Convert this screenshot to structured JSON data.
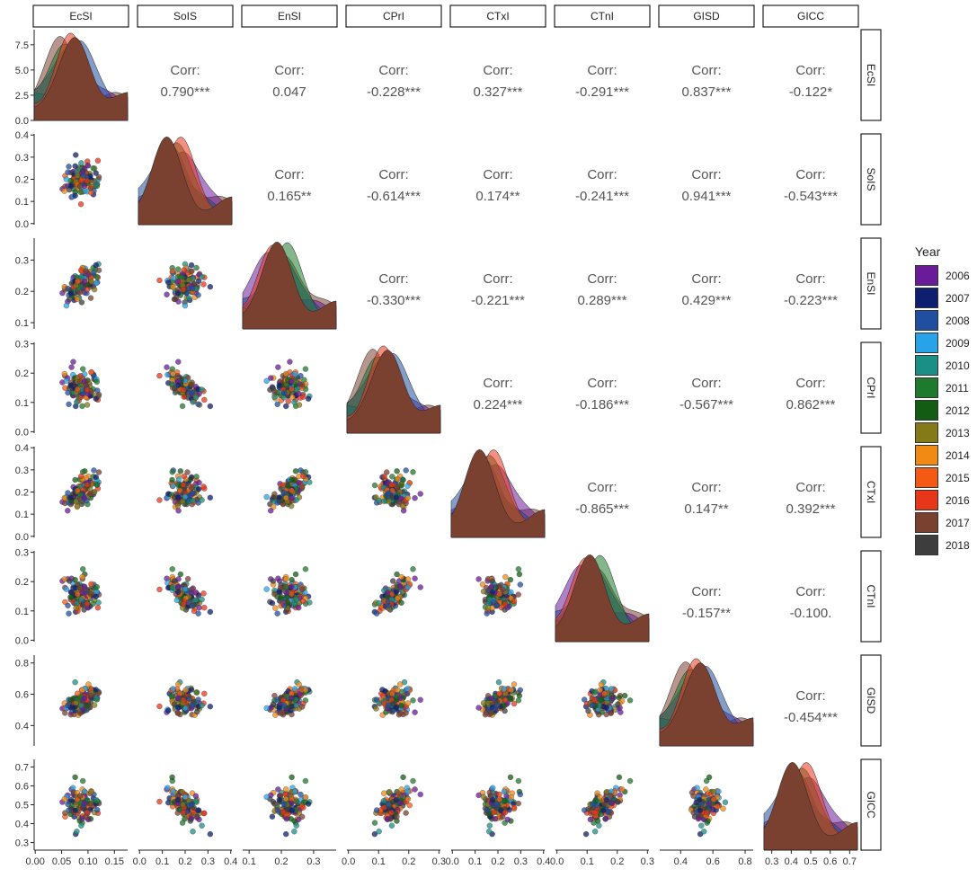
{
  "chart_data": {
    "type": "scatter-matrix",
    "variables": [
      "EcSI",
      "SoIS",
      "EnSI",
      "CPrI",
      "CTxI",
      "CTnI",
      "GISD",
      "GICC"
    ],
    "corr_label": "Corr:",
    "correlations": [
      {
        "row": "EcSI",
        "col": "SoIS",
        "value": "0.790***"
      },
      {
        "row": "EcSI",
        "col": "EnSI",
        "value": "0.047"
      },
      {
        "row": "EcSI",
        "col": "CPrI",
        "value": "-0.228***"
      },
      {
        "row": "EcSI",
        "col": "CTxI",
        "value": "0.327***"
      },
      {
        "row": "EcSI",
        "col": "CTnI",
        "value": "-0.291***"
      },
      {
        "row": "EcSI",
        "col": "GISD",
        "value": "0.837***"
      },
      {
        "row": "EcSI",
        "col": "GICC",
        "value": "-0.122*"
      },
      {
        "row": "SoIS",
        "col": "EnSI",
        "value": "0.165**"
      },
      {
        "row": "SoIS",
        "col": "CPrI",
        "value": "-0.614***"
      },
      {
        "row": "SoIS",
        "col": "CTxI",
        "value": "0.174**"
      },
      {
        "row": "SoIS",
        "col": "CTnI",
        "value": "-0.241***"
      },
      {
        "row": "SoIS",
        "col": "GISD",
        "value": "0.941***"
      },
      {
        "row": "SoIS",
        "col": "GICC",
        "value": "-0.543***"
      },
      {
        "row": "EnSI",
        "col": "CPrI",
        "value": "-0.330***"
      },
      {
        "row": "EnSI",
        "col": "CTxI",
        "value": "-0.221***"
      },
      {
        "row": "EnSI",
        "col": "CTnI",
        "value": "0.289***"
      },
      {
        "row": "EnSI",
        "col": "GISD",
        "value": "0.429***"
      },
      {
        "row": "EnSI",
        "col": "GICC",
        "value": "-0.223***"
      },
      {
        "row": "CPrI",
        "col": "CTxI",
        "value": "0.224***"
      },
      {
        "row": "CPrI",
        "col": "CTnI",
        "value": "-0.186***"
      },
      {
        "row": "CPrI",
        "col": "GISD",
        "value": "-0.567***"
      },
      {
        "row": "CPrI",
        "col": "GICC",
        "value": "0.862***"
      },
      {
        "row": "CTxI",
        "col": "CTnI",
        "value": "-0.865***"
      },
      {
        "row": "CTxI",
        "col": "GISD",
        "value": "0.147**"
      },
      {
        "row": "CTxI",
        "col": "GICC",
        "value": "0.392***"
      },
      {
        "row": "CTnI",
        "col": "GISD",
        "value": "-0.157**"
      },
      {
        "row": "CTnI",
        "col": "GICC",
        "value": "-0.100."
      },
      {
        "row": "GISD",
        "col": "GICC",
        "value": "-0.454***"
      }
    ],
    "x_ticks": [
      [
        "0.00",
        "0.05",
        "0.10",
        "0.15"
      ],
      [
        "0.0",
        "0.1",
        "0.2",
        "0.3",
        "0.4"
      ],
      [
        "0.1",
        "0.2",
        "0.3"
      ],
      [
        "0.0",
        "0.1",
        "0.2",
        "0.3"
      ],
      [
        "0.0",
        "0.1",
        "0.2",
        "0.3",
        "0.4"
      ],
      [
        "0.0",
        "0.1",
        "0.2",
        "0.3"
      ],
      [
        "0.4",
        "0.6",
        "0.8"
      ],
      [
        "0.3",
        "0.4",
        "0.5",
        "0.6",
        "0.7"
      ]
    ],
    "y_ticks": [
      [
        "0.0",
        "2.5",
        "5.0",
        "7.5"
      ],
      [
        "0.0",
        "0.1",
        "0.2",
        "0.3",
        "0.4"
      ],
      [
        "0.1",
        "0.2",
        "0.3"
      ],
      [
        "0.0",
        "0.1",
        "0.2",
        "0.3"
      ],
      [
        "0.0",
        "0.1",
        "0.2",
        "0.3",
        "0.4"
      ],
      [
        "0.0",
        "0.1",
        "0.2",
        "0.3"
      ],
      [
        "0.4",
        "0.6",
        "0.8"
      ],
      [
        "0.3",
        "0.4",
        "0.5",
        "0.6",
        "0.7"
      ]
    ],
    "ranges": [
      [
        -0.002,
        0.175
      ],
      [
        -0.005,
        0.405
      ],
      [
        0.08,
        0.37
      ],
      [
        -0.005,
        0.305
      ],
      [
        -0.005,
        0.405
      ],
      [
        -0.005,
        0.305
      ],
      [
        0.27,
        0.85
      ],
      [
        0.26,
        0.74
      ]
    ],
    "density_y_range": [
      0,
      9
    ]
  },
  "legend": {
    "title": "Year",
    "items": [
      {
        "label": "2006",
        "color": "#6a1b9a"
      },
      {
        "label": "2007",
        "color": "#0d1f6e"
      },
      {
        "label": "2008",
        "color": "#1f4f9e"
      },
      {
        "label": "2009",
        "color": "#29a3e8"
      },
      {
        "label": "2010",
        "color": "#1a8f86"
      },
      {
        "label": "2011",
        "color": "#1f7a2e"
      },
      {
        "label": "2012",
        "color": "#135c14"
      },
      {
        "label": "2013",
        "color": "#857a18"
      },
      {
        "label": "2014",
        "color": "#f08a14"
      },
      {
        "label": "2015",
        "color": "#f45a14"
      },
      {
        "label": "2016",
        "color": "#e8361a"
      },
      {
        "label": "2017",
        "color": "#7a4030"
      },
      {
        "label": "2018",
        "color": "#3d3d3d"
      }
    ]
  }
}
